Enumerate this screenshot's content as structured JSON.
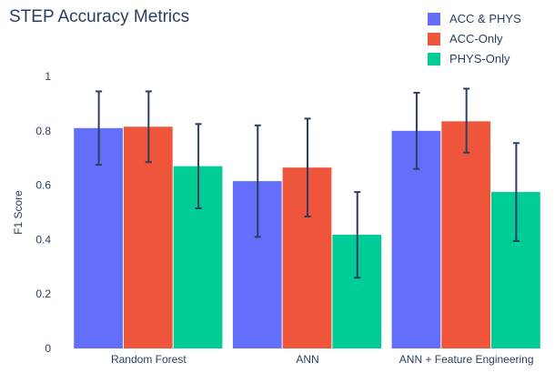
{
  "chart_data": {
    "type": "bar",
    "title": "STEP Accuracy Metrics",
    "xlabel": "",
    "ylabel": "F1 Score",
    "categories": [
      "Random Forest",
      "ANN",
      "ANN + Feature Engineering"
    ],
    "ylim": [
      0,
      1
    ],
    "yticks": [
      0,
      0.2,
      0.4,
      0.6,
      0.8,
      1
    ],
    "ytick_labels": [
      "0",
      "0.2",
      "0.4",
      "0.6",
      "0.8",
      "1"
    ],
    "grid": false,
    "legend_position": "top-right",
    "series": [
      {
        "name": "ACC & PHYS",
        "color": "#636efa",
        "values": [
          0.81,
          0.615,
          0.8
        ],
        "error_low": [
          0.675,
          0.41,
          0.66
        ],
        "error_high": [
          0.945,
          0.82,
          0.94
        ]
      },
      {
        "name": "ACC-Only",
        "color": "#ef553b",
        "values": [
          0.815,
          0.665,
          0.835
        ],
        "error_low": [
          0.685,
          0.485,
          0.72
        ],
        "error_high": [
          0.945,
          0.845,
          0.955
        ]
      },
      {
        "name": "PHYS-Only",
        "color": "#00cc96",
        "values": [
          0.67,
          0.418,
          0.575
        ],
        "error_low": [
          0.515,
          0.26,
          0.395
        ],
        "error_high": [
          0.825,
          0.575,
          0.755
        ]
      }
    ]
  }
}
